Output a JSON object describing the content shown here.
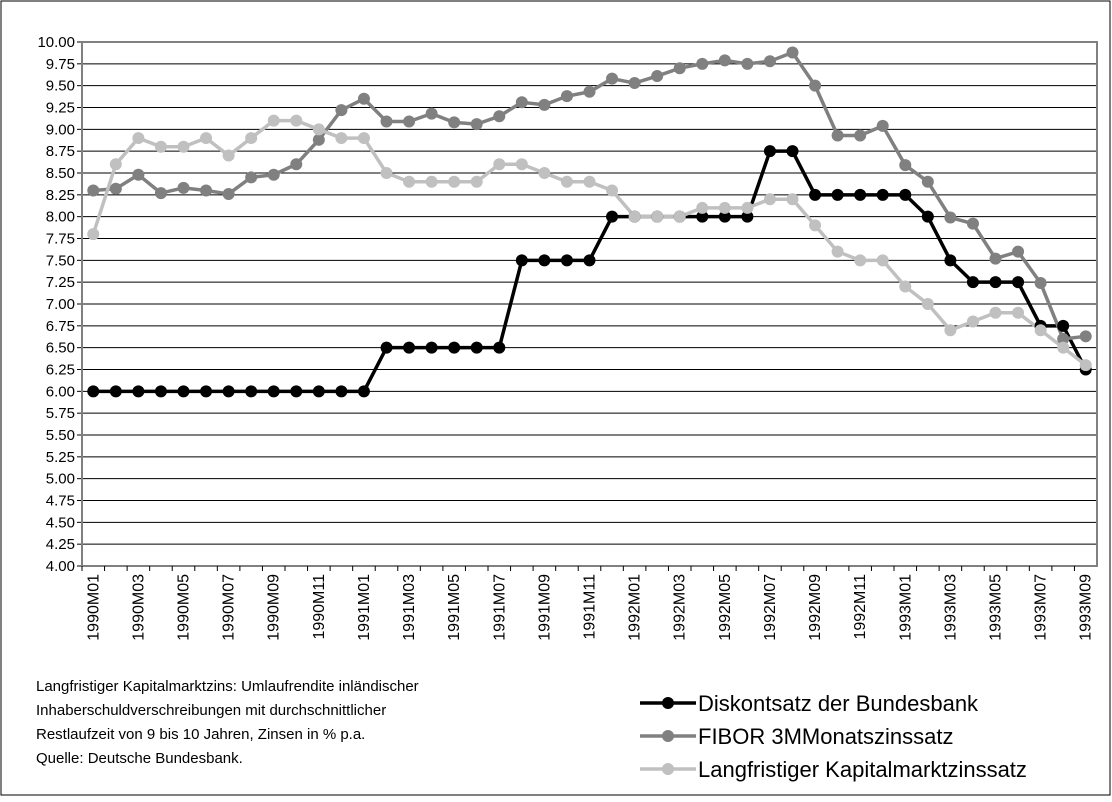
{
  "chart_data": {
    "type": "line",
    "categories": [
      "1990M01",
      null,
      "1990M03",
      null,
      "1990M05",
      null,
      "1990M07",
      null,
      "1990M09",
      null,
      "1990M11",
      null,
      "1991M01",
      null,
      "1991M03",
      null,
      "1991M05",
      null,
      "1991M07",
      null,
      "1991M09",
      null,
      "1991M11",
      null,
      "1992M01",
      null,
      "1992M03",
      null,
      "1992M05",
      null,
      "1992M07",
      null,
      "1992M09",
      null,
      "1992M11",
      null,
      "1993M01",
      null,
      "1993M03",
      null,
      "1993M05",
      null,
      "1993M07",
      null,
      "1993M09"
    ],
    "series": [
      {
        "name": "Diskontsatz der Bundesbank",
        "color": "#000000",
        "values": [
          6,
          6,
          6,
          6,
          6,
          6,
          6,
          6,
          6,
          6,
          6,
          6,
          6,
          6.5,
          6.5,
          6.5,
          6.5,
          6.5,
          6.5,
          7.5,
          7.5,
          7.5,
          7.5,
          8,
          8,
          8,
          8,
          8,
          8,
          8,
          8.75,
          8.75,
          8.25,
          8.25,
          8.25,
          8.25,
          8.25,
          8,
          7.5,
          7.25,
          7.25,
          7.25,
          6.75,
          6.75,
          6.25
        ]
      },
      {
        "name": "FIBOR 3MMonatszinssatz",
        "color": "#808080",
        "values": [
          8.3,
          8.32,
          8.48,
          8.27,
          8.33,
          8.3,
          8.26,
          8.45,
          8.48,
          8.6,
          8.88,
          9.22,
          9.35,
          9.09,
          9.09,
          9.18,
          9.08,
          9.06,
          9.15,
          9.31,
          9.28,
          9.38,
          9.43,
          9.58,
          9.53,
          9.61,
          9.7,
          9.75,
          9.79,
          9.75,
          9.78,
          9.88,
          9.5,
          8.93,
          8.93,
          9.04,
          8.59,
          8.4,
          7.99,
          7.92,
          7.52,
          7.6,
          7.24,
          6.6,
          6.63
        ]
      },
      {
        "name": "Langfristiger Kapitalmarktzinssatz",
        "color": "#c0c0c0",
        "values": [
          7.8,
          8.6,
          8.9,
          8.8,
          8.8,
          8.9,
          8.7,
          8.9,
          9.1,
          9.1,
          9,
          8.9,
          8.9,
          8.5,
          8.4,
          8.4,
          8.4,
          8.4,
          8.6,
          8.6,
          8.5,
          8.4,
          8.4,
          8.3,
          8,
          8,
          8,
          8.1,
          8.1,
          8.1,
          8.2,
          8.2,
          7.9,
          7.6,
          7.5,
          7.5,
          7.2,
          7,
          6.7,
          6.8,
          6.9,
          6.9,
          6.7,
          6.5,
          6.3
        ]
      }
    ],
    "ylim": [
      4,
      10
    ],
    "yticks": [
      {
        "value": 4,
        "label": "4.00"
      },
      {
        "value": 4.25,
        "label": "4.25"
      },
      {
        "value": 4.5,
        "label": "4.50"
      },
      {
        "value": 4.75,
        "label": "4.75"
      },
      {
        "value": 5,
        "label": "5.00"
      },
      {
        "value": 5.25,
        "label": "5.25"
      },
      {
        "value": 5.5,
        "label": "5.50"
      },
      {
        "value": 5.75,
        "label": "5.75"
      },
      {
        "value": 6,
        "label": "6.00"
      },
      {
        "value": 6.25,
        "label": "6.25"
      },
      {
        "value": 6.5,
        "label": "6.50"
      },
      {
        "value": 6.75,
        "label": "6.75"
      },
      {
        "value": 7,
        "label": "7.00"
      },
      {
        "value": 7.25,
        "label": "7.25"
      },
      {
        "value": 7.5,
        "label": "7.50"
      },
      {
        "value": 7.75,
        "label": "7.75"
      },
      {
        "value": 8,
        "label": "8.00"
      },
      {
        "value": 8.25,
        "label": "8.25"
      },
      {
        "value": 8.5,
        "label": "8.50"
      },
      {
        "value": 8.75,
        "label": "8.75"
      },
      {
        "value": 9,
        "label": "9.00"
      },
      {
        "value": 9.25,
        "label": "9.25"
      },
      {
        "value": 9.5,
        "label": "9.50"
      },
      {
        "value": 9.75,
        "label": "9.75"
      },
      {
        "value": 10,
        "label": "10.00"
      }
    ],
    "grid": true,
    "legend": "bottom-right",
    "note": [
      "Langfristiger Kapitalmarktzins: Umlaufrendite inländischer",
      "Inhaberschuldverschreibungen mit durchschnittlicher",
      "Restlaufzeit von 9 bis 10 Jahren, Zinsen in % p.a.",
      "Quelle: Deutsche Bundesbank."
    ]
  }
}
